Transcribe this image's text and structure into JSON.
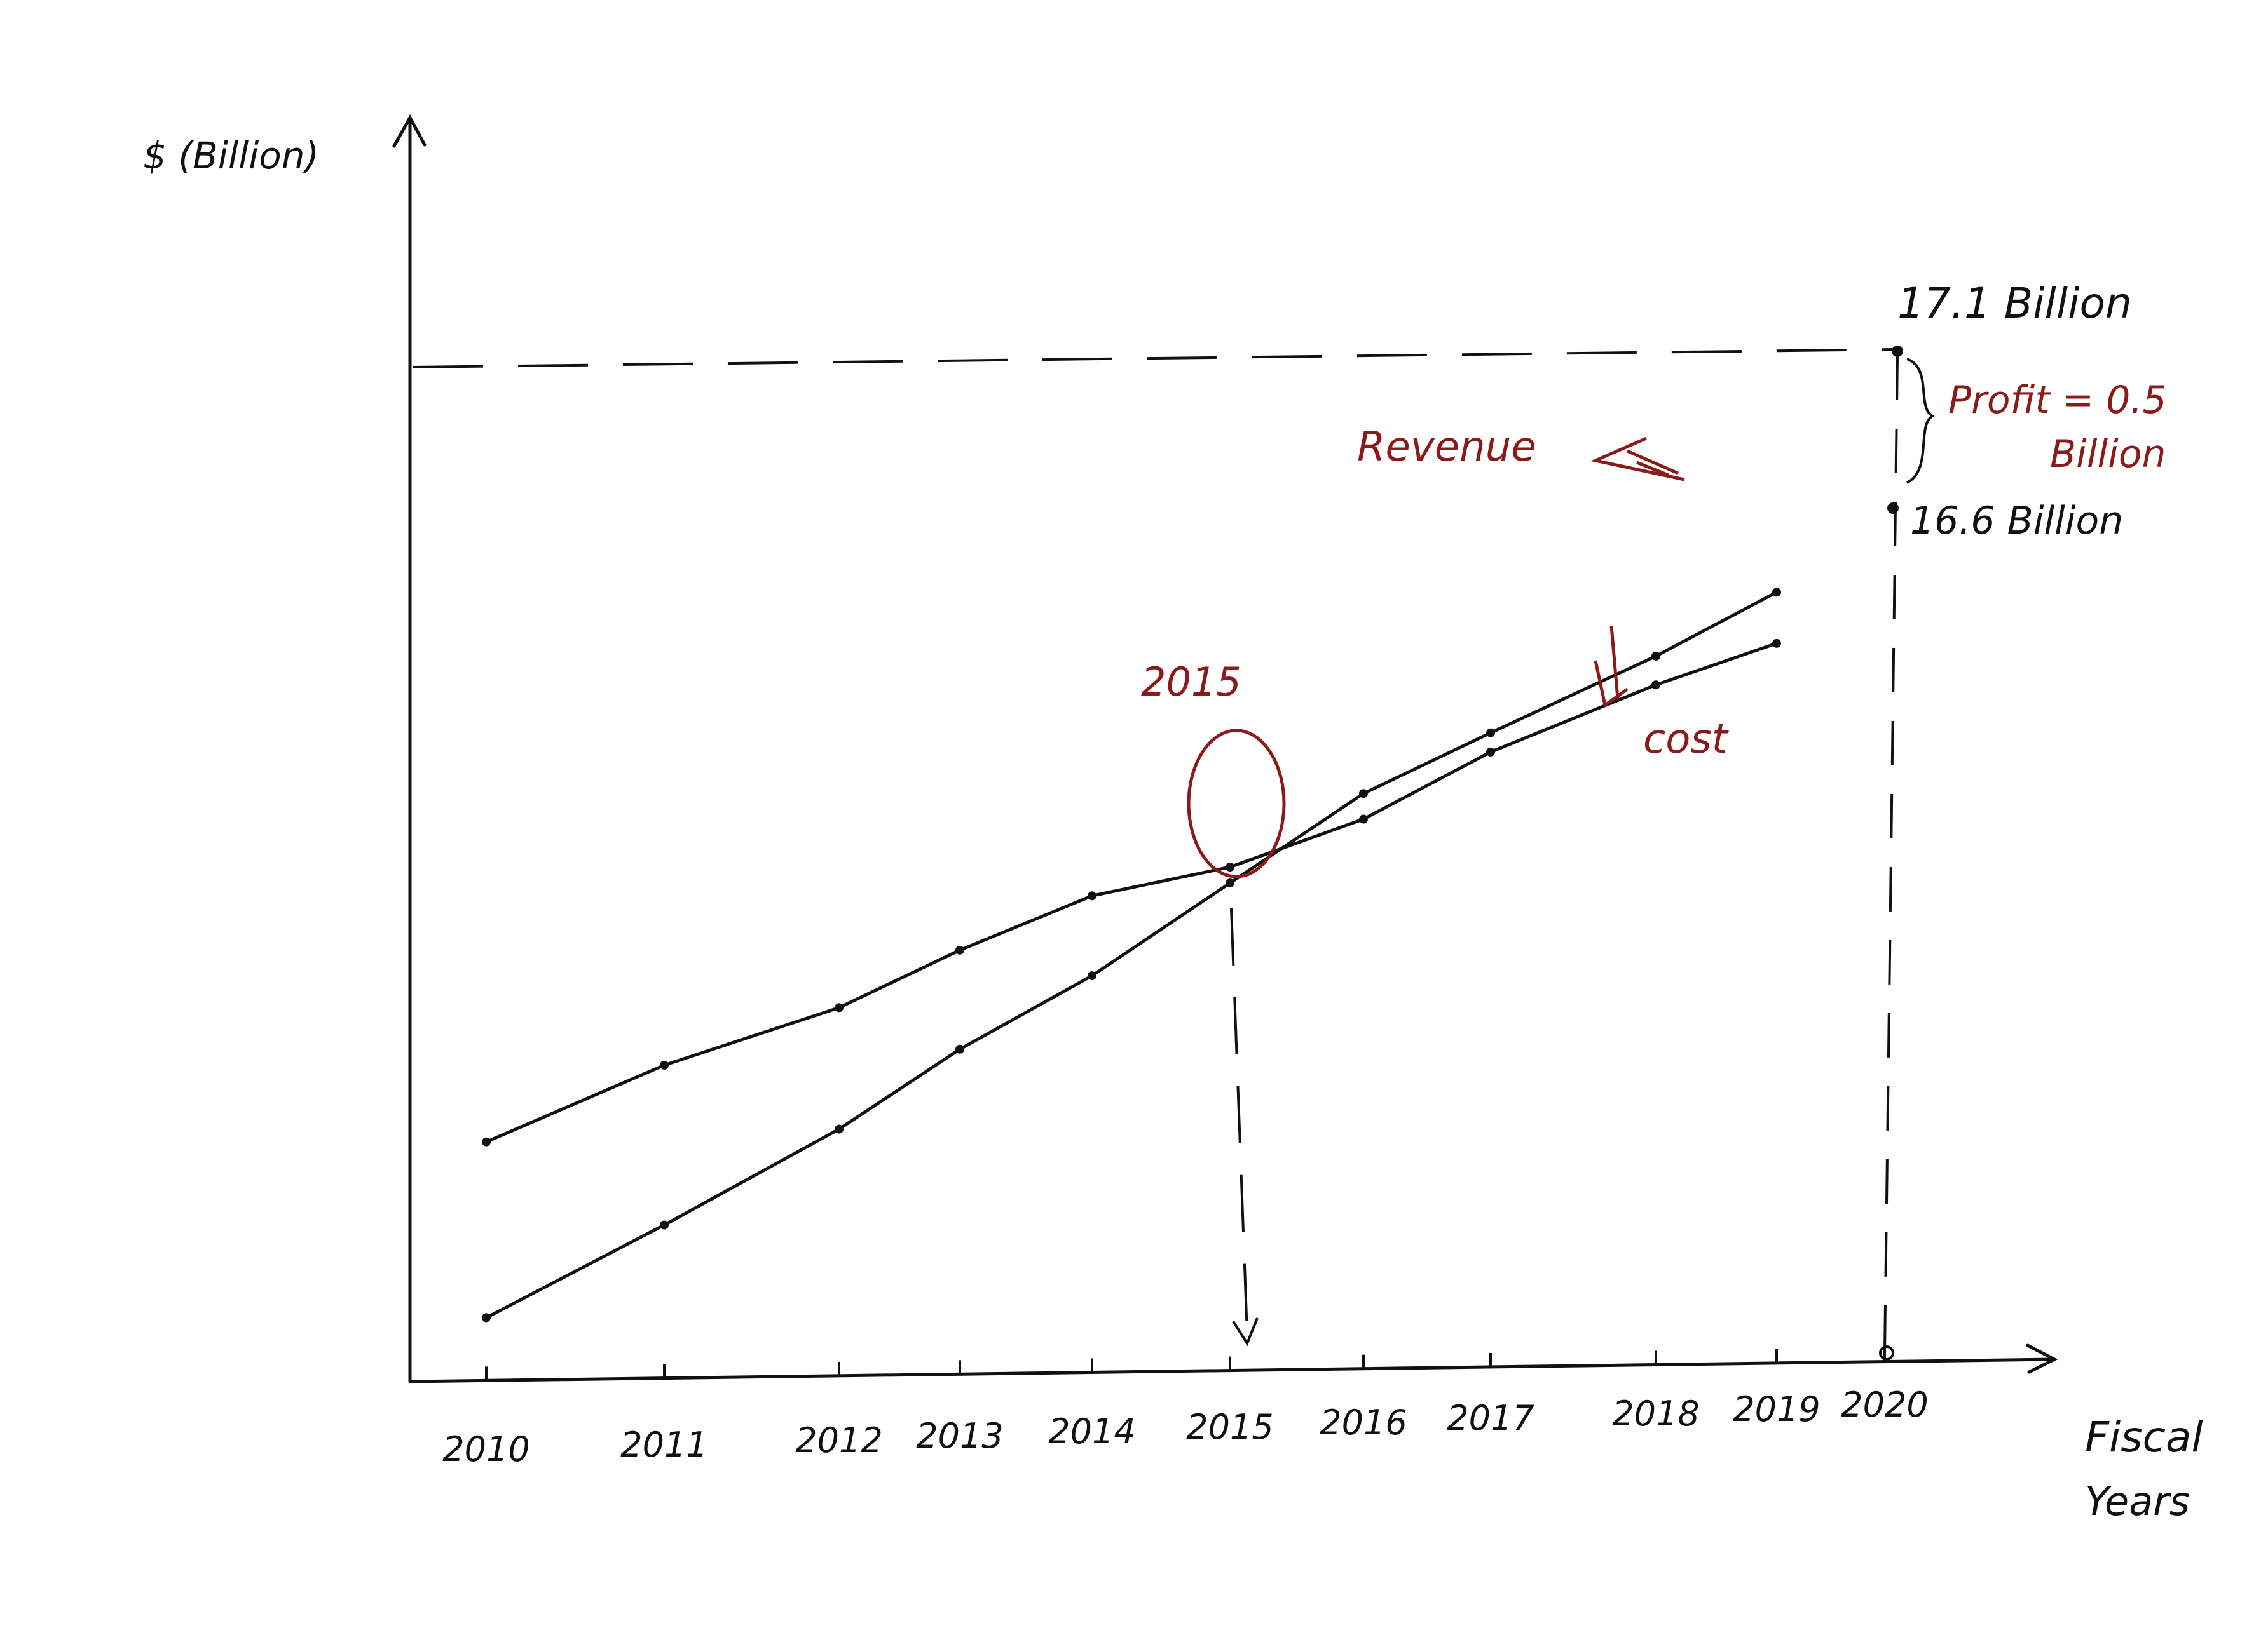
{
  "chart_data": {
    "type": "line",
    "ylabel": "$ (Billion)",
    "xlabel": "Fiscal Years",
    "categories": [
      "2010",
      "2011",
      "2012",
      "2013",
      "2014",
      "2015",
      "2016",
      "2017",
      "2018",
      "2019",
      "2020"
    ],
    "series": [
      {
        "name": "Revenue",
        "values": [
          1.9,
          4.8,
          7.8,
          10.3,
          12.6,
          15.5,
          18.3,
          20.2,
          22.6,
          24.6,
          null
        ]
      },
      {
        "name": "Cost",
        "values": [
          7.4,
          9.8,
          11.6,
          13.4,
          15.1,
          16.0,
          17.5,
          19.6,
          21.7,
          23.0,
          null
        ]
      }
    ],
    "ylim": [
      0,
      32
    ],
    "grid": false,
    "reference_lines": {
      "revenue_2020": 17.1,
      "cost_2020": 16.6
    },
    "annotations": {
      "crossover": "2015",
      "revenue_end": "17.1 Billion",
      "profit_line1": "Profit = 0.5",
      "profit_line2": "Billion",
      "cost_end": "16.6 Billion",
      "revenue_label": "Revenue",
      "cost_label": "cost",
      "fiscal_word": "Fiscal",
      "years_word": "Years"
    },
    "colors": {
      "ink": "#111111",
      "annotation": "#8b1a1a"
    }
  }
}
